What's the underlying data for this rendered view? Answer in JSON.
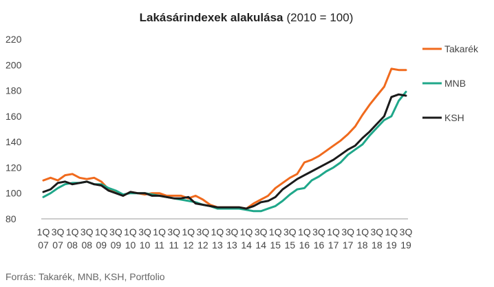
{
  "chart_data": {
    "type": "line",
    "title": "Lakásárindexek alakulása",
    "subtitle": "(2010 = 100)",
    "xlabel": "",
    "ylabel": "",
    "ylim": [
      80,
      220
    ],
    "yticks": [
      80,
      100,
      120,
      140,
      160,
      180,
      200,
      220
    ],
    "grid": false,
    "legend_position": "right",
    "x_tick_labels": [
      [
        "1Q",
        "07"
      ],
      [
        "3Q",
        "07"
      ],
      [
        "1Q",
        "08"
      ],
      [
        "3Q",
        "08"
      ],
      [
        "1Q",
        "09"
      ],
      [
        "3Q",
        "09"
      ],
      [
        "1Q",
        "10"
      ],
      [
        "3Q",
        "10"
      ],
      [
        "1Q",
        "11"
      ],
      [
        "3Q",
        "11"
      ],
      [
        "1Q",
        "12"
      ],
      [
        "3Q",
        "12"
      ],
      [
        "1Q",
        "13"
      ],
      [
        "3Q",
        "13"
      ],
      [
        "1Q",
        "14"
      ],
      [
        "3Q",
        "14"
      ],
      [
        "1Q",
        "15"
      ],
      [
        "3Q",
        "15"
      ],
      [
        "1Q",
        "16"
      ],
      [
        "3Q",
        "16"
      ],
      [
        "1Q",
        "17"
      ],
      [
        "3Q",
        "17"
      ],
      [
        "1Q",
        "18"
      ],
      [
        "3Q",
        "18"
      ],
      [
        "1Q",
        "19"
      ],
      [
        "3Q",
        "19"
      ]
    ],
    "x": [
      "1Q07",
      "2Q07",
      "3Q07",
      "4Q07",
      "1Q08",
      "2Q08",
      "3Q08",
      "4Q08",
      "1Q09",
      "2Q09",
      "3Q09",
      "4Q09",
      "1Q10",
      "2Q10",
      "3Q10",
      "4Q10",
      "1Q11",
      "2Q11",
      "3Q11",
      "4Q11",
      "1Q12",
      "2Q12",
      "3Q12",
      "4Q12",
      "1Q13",
      "2Q13",
      "3Q13",
      "4Q13",
      "1Q14",
      "2Q14",
      "3Q14",
      "4Q14",
      "1Q15",
      "2Q15",
      "3Q15",
      "4Q15",
      "1Q16",
      "2Q16",
      "3Q16",
      "4Q16",
      "1Q17",
      "2Q17",
      "3Q17",
      "4Q17",
      "1Q18",
      "2Q18",
      "3Q18",
      "4Q18",
      "1Q19",
      "2Q19",
      "3Q19"
    ],
    "series": [
      {
        "name": "Takarék",
        "color": "#f06a1d",
        "values": [
          110,
          112,
          110,
          114,
          115,
          112,
          111,
          112,
          109,
          103,
          101,
          98,
          101,
          100,
          99,
          100,
          100,
          98,
          98,
          98,
          96,
          98,
          95,
          91,
          89,
          89,
          89,
          89,
          88,
          92,
          95,
          98,
          104,
          108,
          112,
          115,
          124,
          126,
          129,
          133,
          137,
          141,
          146,
          152,
          161,
          169,
          176,
          183,
          197,
          196,
          196
        ]
      },
      {
        "name": "MNB",
        "color": "#1fa78a",
        "values": [
          97,
          100,
          104,
          107,
          108,
          108,
          109,
          107,
          107,
          104,
          102,
          99,
          100,
          100,
          100,
          99,
          98,
          97,
          96,
          95,
          94,
          93,
          91,
          90,
          88,
          88,
          88,
          88,
          87,
          86,
          86,
          88,
          90,
          94,
          99,
          103,
          104,
          110,
          113,
          117,
          120,
          124,
          130,
          134,
          138,
          145,
          151,
          157,
          160,
          172,
          179
        ]
      },
      {
        "name": "KSH",
        "color": "#1a1a1a",
        "values": [
          101,
          103,
          108,
          109,
          107,
          108,
          109,
          107,
          106,
          102,
          100,
          98,
          101,
          100,
          100,
          98,
          98,
          97,
          96,
          96,
          97,
          92,
          91,
          90,
          89,
          89,
          89,
          89,
          88,
          90,
          93,
          94,
          97,
          103,
          107,
          111,
          114,
          117,
          120,
          123,
          126,
          130,
          134,
          137,
          143,
          148,
          154,
          160,
          175,
          177,
          176
        ]
      }
    ]
  },
  "source": "Forrás: Takarék, MNB, KSH, Portfolio"
}
